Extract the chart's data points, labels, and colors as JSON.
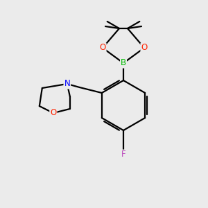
{
  "background_color": "#ebebeb",
  "bond_color": "#000000",
  "atom_colors": {
    "B": "#00bb00",
    "O": "#ff2200",
    "N": "#0000ff",
    "F": "#bb44bb"
  },
  "figsize": [
    3.0,
    3.0
  ],
  "dpi": 100
}
